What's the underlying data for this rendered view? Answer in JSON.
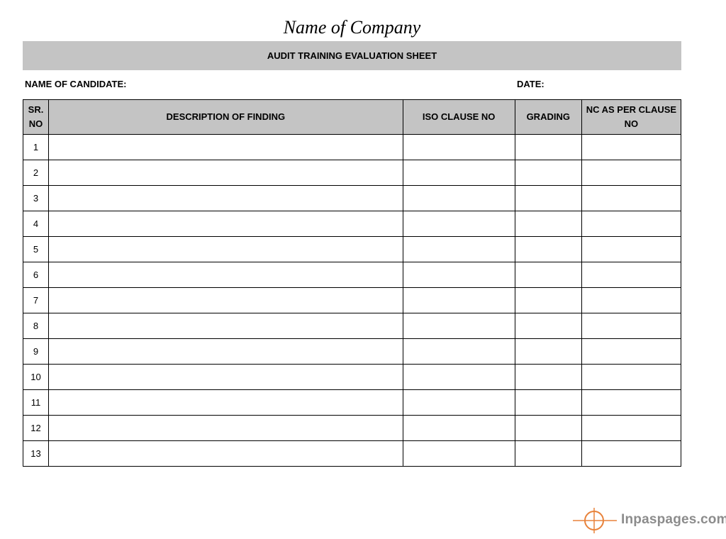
{
  "company_name": "Name of Company",
  "sheet_title": "AUDIT TRAINING EVALUATION SHEET",
  "fields": {
    "candidate_label": "NAME OF CANDIDATE:",
    "date_label": "DATE:"
  },
  "table": {
    "headers": {
      "sr_line1": "SR.",
      "sr_line2": "NO",
      "description": "DESCRIPTION OF FINDING",
      "iso_clause": "ISO CLAUSE NO",
      "grading": "GRADING",
      "nc_line1": "NC AS PER CLAUSE",
      "nc_line2": "NO"
    },
    "rows": [
      {
        "sr": "1",
        "description": "",
        "iso_clause": "",
        "grading": "",
        "nc": ""
      },
      {
        "sr": "2",
        "description": "",
        "iso_clause": "",
        "grading": "",
        "nc": ""
      },
      {
        "sr": "3",
        "description": "",
        "iso_clause": "",
        "grading": "",
        "nc": ""
      },
      {
        "sr": "4",
        "description": "",
        "iso_clause": "",
        "grading": "",
        "nc": ""
      },
      {
        "sr": "5",
        "description": "",
        "iso_clause": "",
        "grading": "",
        "nc": ""
      },
      {
        "sr": "6",
        "description": "",
        "iso_clause": "",
        "grading": "",
        "nc": ""
      },
      {
        "sr": "7",
        "description": "",
        "iso_clause": "",
        "grading": "",
        "nc": ""
      },
      {
        "sr": "8",
        "description": "",
        "iso_clause": "",
        "grading": "",
        "nc": ""
      },
      {
        "sr": "9",
        "description": "",
        "iso_clause": "",
        "grading": "",
        "nc": ""
      },
      {
        "sr": "10",
        "description": "",
        "iso_clause": "",
        "grading": "",
        "nc": ""
      },
      {
        "sr": "11",
        "description": "",
        "iso_clause": "",
        "grading": "",
        "nc": ""
      },
      {
        "sr": "12",
        "description": "",
        "iso_clause": "",
        "grading": "",
        "nc": ""
      },
      {
        "sr": "13",
        "description": "",
        "iso_clause": "",
        "grading": "",
        "nc": ""
      }
    ]
  },
  "watermark": {
    "text": "Inpaspages.com",
    "icon": "crosshair-icon",
    "icon_color": "#e8823a",
    "text_color": "#8c8c8c"
  },
  "colors": {
    "header_fill": "#c4c4c4",
    "border": "#000000"
  }
}
